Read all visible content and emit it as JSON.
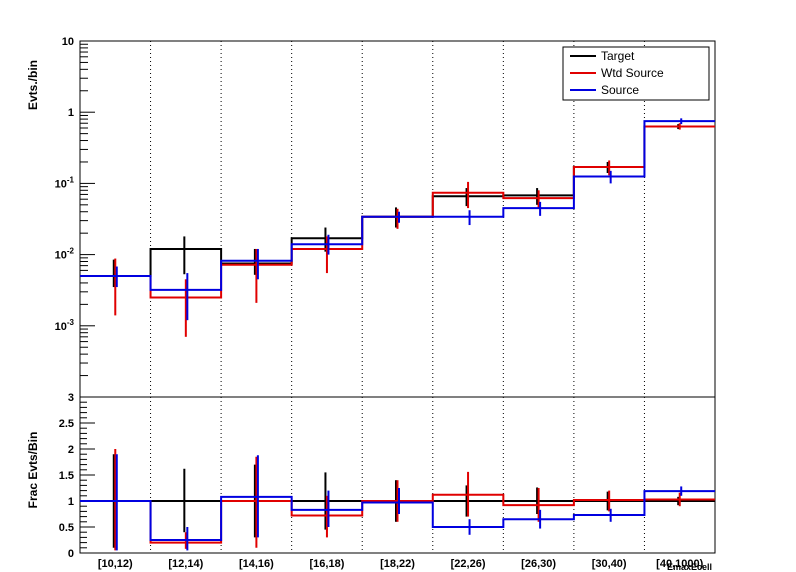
{
  "chart_data": [
    {
      "panel": "top",
      "type": "histogram-step",
      "ylabel": "Evts./bin",
      "yscale": "log",
      "ylim": [
        0.0001,
        10
      ],
      "ytick_labels": [
        "10^-3",
        "10^-2",
        "10^-1",
        "1",
        "10"
      ],
      "categories": [
        "[10,12)",
        "[12,14)",
        "[14,16)",
        "[16,18)",
        "[18,22)",
        "[22,26)",
        "[26,30)",
        "[30,40)",
        "[40,1000)"
      ],
      "legend": {
        "position": "top-right",
        "entries": [
          "Target",
          "Wtd Source",
          "Source"
        ]
      },
      "series": [
        {
          "name": "Target",
          "color": "#000000",
          "values": [
            0.005,
            0.012,
            0.0075,
            0.017,
            0.034,
            0.066,
            0.068,
            0.17,
            0.63
          ],
          "err_low": [
            0.0035,
            0.0053,
            0.0052,
            0.011,
            0.024,
            0.048,
            0.05,
            0.14,
            0.58
          ],
          "err_high": [
            0.0085,
            0.018,
            0.012,
            0.024,
            0.046,
            0.086,
            0.086,
            0.2,
            0.68
          ]
        },
        {
          "name": "Wtd Source",
          "color": "#e00000",
          "values": [
            0.005,
            0.0025,
            0.0072,
            0.012,
            0.034,
            0.074,
            0.062,
            0.17,
            0.63
          ],
          "err_low": [
            0.0014,
            0.0007,
            0.0021,
            0.0055,
            0.023,
            0.045,
            0.045,
            0.13,
            0.57
          ],
          "err_high": [
            0.0088,
            0.0045,
            0.012,
            0.018,
            0.044,
            0.105,
            0.08,
            0.21,
            0.7
          ]
        },
        {
          "name": "Source",
          "color": "#0000e0",
          "values": [
            0.005,
            0.0032,
            0.0082,
            0.014,
            0.034,
            0.034,
            0.045,
            0.125,
            0.75
          ],
          "err_low": [
            0.0035,
            0.0012,
            0.0045,
            0.01,
            0.028,
            0.026,
            0.035,
            0.1,
            0.68
          ],
          "err_high": [
            0.0068,
            0.0055,
            0.012,
            0.019,
            0.04,
            0.042,
            0.055,
            0.15,
            0.82
          ]
        }
      ]
    },
    {
      "panel": "bottom",
      "type": "histogram-step",
      "ylabel": "Frac Evts/Bin",
      "ylim": [
        0,
        3
      ],
      "ytick_labels": [
        "0",
        "0.5",
        "1",
        "1.5",
        "2",
        "2.5",
        "3"
      ],
      "xlabel": "EmaxEcell",
      "categories": [
        "[10,12)",
        "[12,14)",
        "[14,16)",
        "[16,18)",
        "[18,22)",
        "[22,26)",
        "[26,30)",
        "[30,40)",
        "[40,1000)"
      ],
      "series": [
        {
          "name": "Target",
          "color": "#000000",
          "values": [
            1,
            1,
            1,
            1,
            1,
            1,
            1,
            1,
            1
          ],
          "err_low": [
            0.1,
            0.4,
            0.3,
            0.45,
            0.6,
            0.7,
            0.75,
            0.82,
            0.92
          ],
          "err_high": [
            1.9,
            1.62,
            1.7,
            1.55,
            1.4,
            1.3,
            1.26,
            1.18,
            1.08
          ]
        },
        {
          "name": "Wtd Source",
          "color": "#e00000",
          "values": [
            1,
            0.2,
            1.0,
            0.72,
            1.0,
            1.12,
            0.92,
            1.02,
            1.03
          ],
          "err_low": [
            0.05,
            0.08,
            0.1,
            0.3,
            0.6,
            0.7,
            0.6,
            0.8,
            0.9
          ],
          "err_high": [
            2.0,
            0.4,
            1.85,
            1.1,
            1.4,
            1.56,
            1.25,
            1.2,
            1.16
          ]
        },
        {
          "name": "Source",
          "color": "#0000e0",
          "values": [
            1,
            0.25,
            1.08,
            0.83,
            0.97,
            0.5,
            0.65,
            0.73,
            1.19
          ],
          "err_low": [
            0.05,
            0.05,
            0.3,
            0.5,
            0.75,
            0.35,
            0.47,
            0.6,
            1.1
          ],
          "err_high": [
            1.9,
            0.5,
            1.88,
            1.2,
            1.25,
            0.65,
            0.83,
            0.85,
            1.28
          ]
        }
      ]
    }
  ]
}
